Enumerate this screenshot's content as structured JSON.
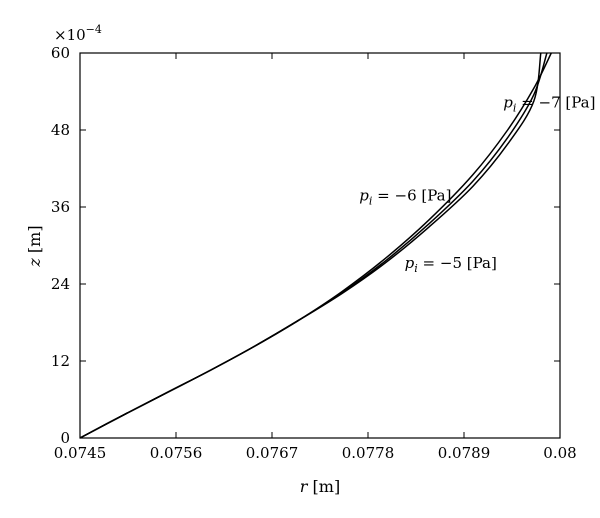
{
  "chart_data": {
    "type": "line",
    "xlabel_var": "r",
    "xlabel_unit": "[m]",
    "ylabel_var": "z",
    "ylabel_unit": "[m]",
    "y_multiplier": "×10",
    "y_multiplier_exp": "−4",
    "xlim": [
      0.0745,
      0.08
    ],
    "ylim": [
      0,
      60
    ],
    "x_ticks": [
      "0.0745",
      "0.0756",
      "0.0767",
      "0.0778",
      "0.0789",
      "0.08"
    ],
    "x_tick_values": [
      0.0745,
      0.0756,
      0.0767,
      0.0778,
      0.0789,
      0.08
    ],
    "y_ticks": [
      "0",
      "12",
      "24",
      "36",
      "48",
      "60"
    ],
    "y_tick_values": [
      0,
      12,
      24,
      36,
      48,
      60
    ],
    "grid": false,
    "series": [
      {
        "x": [
          0.0745,
          0.075,
          0.0755,
          0.076,
          0.0765,
          0.077,
          0.0775,
          0.078,
          0.0785,
          0.079,
          0.0794,
          0.0797,
          0.0799
        ],
        "y": [
          0,
          3.6,
          7.1,
          10.6,
          14.3,
          18.3,
          22.8,
          28.0,
          34.0,
          41.0,
          48.0,
          54.5,
          60
        ]
      },
      {
        "x": [
          0.0745,
          0.075,
          0.0755,
          0.076,
          0.0765,
          0.077,
          0.0775,
          0.078,
          0.0785,
          0.079,
          0.0794,
          0.0797,
          0.07985
        ],
        "y": [
          0,
          3.6,
          7.1,
          10.6,
          14.3,
          18.3,
          22.6,
          27.6,
          33.4,
          40.0,
          46.8,
          53.5,
          60
        ]
      },
      {
        "x": [
          0.0745,
          0.075,
          0.0755,
          0.076,
          0.0765,
          0.077,
          0.0775,
          0.078,
          0.0785,
          0.079,
          0.0794,
          0.0797,
          0.07978
        ],
        "y": [
          0,
          3.6,
          7.1,
          10.6,
          14.3,
          18.3,
          22.5,
          27.3,
          32.9,
          39.2,
          45.8,
          52.5,
          60
        ]
      }
    ],
    "annotations": [
      {
        "label_sub": "i",
        "label_rest": " = −7 [Pa]",
        "x": 0.07935,
        "y": 51.5
      },
      {
        "label_sub": "i",
        "label_rest": " = −6 [Pa]",
        "x": 0.0777,
        "y": 37.0
      },
      {
        "label_sub": "i",
        "label_rest": " = −5 [Pa]",
        "x": 0.07822,
        "y": 26.5
      }
    ]
  }
}
